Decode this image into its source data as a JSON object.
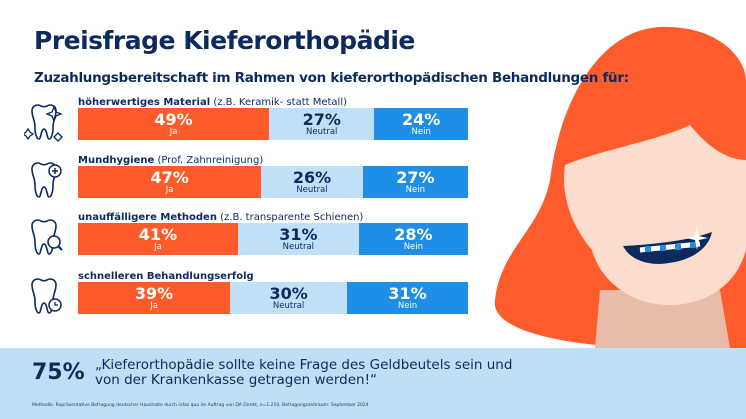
{
  "title": "Preisfrage Kieferorthopädie",
  "colors": {
    "ja": "#ff5a2a",
    "neutral": "#bfe0f7",
    "nein": "#1f8ee6",
    "navy": "#0d2a5c"
  },
  "chart_data": {
    "type": "bar",
    "stacked": true,
    "orientation": "horizontal",
    "title": "Zuzahlungsbereitschaft im Rahmen von kieferorthopädischen Behandlungen für:",
    "categories": [
      {
        "label": "höherwertiges Material",
        "note": "(z.B. Keramik- statt Metall)",
        "icon": "tooth-sparkle-icon"
      },
      {
        "label": "Mundhygiene",
        "note": "(Prof. Zahnreinigung)",
        "icon": "tooth-plus-icon"
      },
      {
        "label": "unauffälligere Methoden",
        "note": "(z.B. transparente Schienen)",
        "icon": "tooth-magnifier-icon"
      },
      {
        "label": "schnelleren Behandlungserfolg",
        "note": "",
        "icon": "tooth-clock-icon"
      }
    ],
    "series": [
      {
        "name": "Ja",
        "values": [
          49,
          47,
          41,
          39
        ]
      },
      {
        "name": "Neutral",
        "values": [
          27,
          26,
          31,
          30
        ]
      },
      {
        "name": "Nein",
        "values": [
          24,
          27,
          28,
          31
        ]
      }
    ],
    "unit": "%"
  },
  "banner": {
    "stat": "75%",
    "quote": "„Kieferorthopädie sollte keine Frage des Geldbeutels sein und von der Krankenkasse getragen werden!“",
    "footnote": "Methodik: Repräsentative Befragung deutscher Haushalte durch infas quo im Auftrag von DA Direkt, n=1.210, Befragungszeitraum: September 2024"
  }
}
